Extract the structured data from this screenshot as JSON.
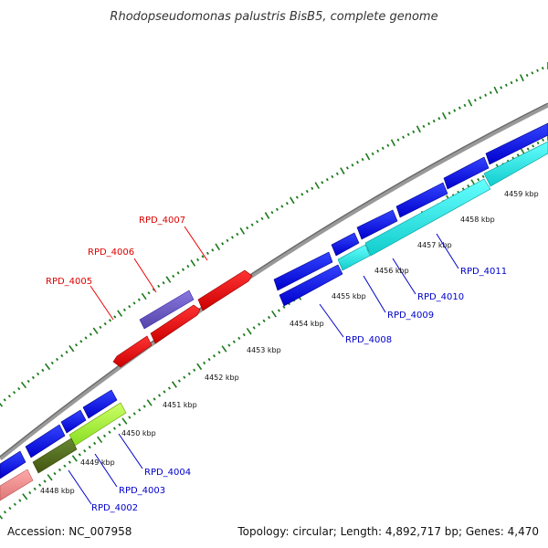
{
  "title": "Rhodopseudomonas palustris BisB5, complete genome",
  "footer": {
    "accession": "Accession: NC_007958",
    "summary": "Topology: circular; Length: 4,892,717 bp; Genes: 4,470"
  },
  "colors": {
    "backbone": "#888888",
    "tick": "#1a7a1a",
    "label_red": "#dd0000",
    "label_blue": "#0000cc",
    "leader_red": "#ee0000",
    "leader_blue": "#0000cc"
  },
  "tick_labels": [
    "4448 kbp",
    "4449 kbp",
    "4450 kbp",
    "4451 kbp",
    "4452 kbp",
    "4453 kbp",
    "4454 kbp",
    "4455 kbp",
    "4456 kbp",
    "4457 kbp",
    "4458 kbp",
    "4459 kbp"
  ],
  "gene_labels": [
    "RPD_4002",
    "RPD_4003",
    "RPD_4004",
    "RPD_4005",
    "RPD_4006",
    "RPD_4007",
    "RPD_4008",
    "RPD_4009",
    "RPD_4010",
    "RPD_4011"
  ],
  "gene_colors": {
    "blue": "#0000ee",
    "red": "#ee0000",
    "purple": "#7766cc",
    "lime": "#aaff33",
    "olive": "#557722",
    "pink": "#ee8888",
    "cyan": "#22eeee"
  }
}
